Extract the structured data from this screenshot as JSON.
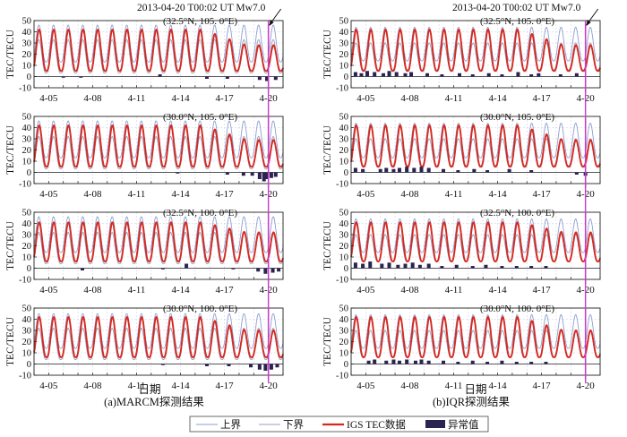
{
  "figure": {
    "colors": {
      "upper": "#8f9ecf",
      "lower": "#9aa0b8",
      "tec": "#d42a22",
      "anomaly": "#2b2350",
      "marker": "#c83cc8",
      "grid": "#c9cbe6"
    },
    "panels_title": {
      "event_label": "2013-04-20 T00:02 UT  Mw7.0"
    },
    "columns": [
      {
        "caption": "(a)MARCM探测结果",
        "xlabel": "日期"
      },
      {
        "caption": "(b)IQR探测结果",
        "xlabel": "日期"
      }
    ],
    "legend": {
      "items": [
        {
          "label": "上界",
          "icon": "thin-line-upper"
        },
        {
          "label": "下界",
          "icon": "thin-line-lower"
        },
        {
          "label": "IGS TEC数据",
          "icon": "thick-red-line"
        },
        {
          "label": "异常值",
          "icon": "dark-bar"
        }
      ]
    }
  },
  "chart_data": [
    {
      "type": "line",
      "method": "MARCM",
      "title": "(32.5°N, 105. 0°E)",
      "ylabel": "TEC/TECU",
      "xlabel": "",
      "ylim": [
        -10,
        50
      ],
      "yticks": [
        -10,
        0,
        10,
        20,
        30,
        40,
        50
      ],
      "xlim": [
        4,
        21
      ],
      "xtick_labels": [
        "4-05",
        "4-08",
        "4-11",
        "4-14",
        "4-17",
        "4-20"
      ],
      "xtick_values": [
        5,
        8,
        11,
        14,
        17,
        20
      ],
      "event_day": 20.0,
      "series": [
        {
          "name": "上界",
          "peak": 46,
          "trough": 13
        },
        {
          "name": "下界",
          "peak": 33,
          "trough": 3
        },
        {
          "name": "IGS TEC数据",
          "peak": 42,
          "trough": 5,
          "late_peak": 28
        }
      ],
      "anomalies": {
        "days": [
          6.0,
          7.2,
          12.6,
          15.8,
          17.2,
          19.4,
          19.9,
          20.5
        ],
        "values": [
          -1,
          -1,
          2,
          -2,
          -2,
          -3,
          -4,
          -3
        ]
      }
    },
    {
      "type": "line",
      "method": "IQR",
      "title": "(32.5°N, 105. 0°E)",
      "ylabel": "TEC/TECU",
      "xlabel": "",
      "ylim": [
        -10,
        50
      ],
      "yticks": [
        -10,
        0,
        10,
        20,
        30,
        40,
        50
      ],
      "xlim": [
        4,
        21
      ],
      "xtick_labels": [
        "4-05",
        "4-08",
        "4-11",
        "4-14",
        "4-17",
        "4-20"
      ],
      "xtick_values": [
        5,
        8,
        11,
        14,
        17,
        20
      ],
      "event_day": 20.0,
      "series": [
        {
          "name": "上界",
          "peak": 44,
          "trough": 14
        },
        {
          "name": "下界",
          "peak": 30,
          "trough": 6
        },
        {
          "name": "IGS TEC数据",
          "peak": 42,
          "trough": 5,
          "late_peak": 28
        }
      ],
      "anomalies": {
        "days": [
          4.3,
          4.7,
          5.1,
          5.6,
          6.2,
          6.6,
          7.1,
          7.7,
          8.1,
          9.2,
          10.2,
          11.4,
          12.3,
          13.4,
          14.3,
          15.4,
          16.3,
          16.8,
          18.3,
          19.4
        ],
        "values": [
          4,
          3,
          5,
          4,
          3,
          5,
          4,
          3,
          4,
          3,
          2,
          3,
          2,
          3,
          2,
          4,
          2,
          3,
          2,
          3
        ]
      }
    },
    {
      "type": "line",
      "method": "MARCM",
      "title": "(30.0°N, 105. 0°E)",
      "ylabel": "TEC/TECU",
      "xlabel": "",
      "ylim": [
        -10,
        50
      ],
      "yticks": [
        -10,
        0,
        10,
        20,
        30,
        40,
        50
      ],
      "xlim": [
        4,
        21
      ],
      "xtick_labels": [
        "4-05",
        "4-08",
        "4-11",
        "4-14",
        "4-17",
        "4-20"
      ],
      "xtick_values": [
        5,
        8,
        11,
        14,
        17,
        20
      ],
      "event_day": 20.0,
      "series": [
        {
          "name": "上界",
          "peak": 46,
          "trough": 13
        },
        {
          "name": "下界",
          "peak": 32,
          "trough": 3
        },
        {
          "name": "IGS TEC数据",
          "peak": 42,
          "trough": 5,
          "late_peak": 29
        }
      ],
      "anomalies": {
        "days": [
          13.8,
          17.2,
          18.3,
          18.9,
          19.4,
          19.7,
          19.9,
          20.2,
          20.5
        ],
        "values": [
          -1,
          -2,
          -3,
          -3,
          -6,
          -8,
          -6,
          -5,
          -4
        ]
      }
    },
    {
      "type": "line",
      "method": "IQR",
      "title": "(30.0°N, 105. 0°E)",
      "ylabel": "TEC/TECU",
      "xlabel": "",
      "ylim": [
        -10,
        50
      ],
      "yticks": [
        -10,
        0,
        10,
        20,
        30,
        40,
        50
      ],
      "xlim": [
        4,
        21
      ],
      "xtick_labels": [
        "4-05",
        "4-08",
        "4-11",
        "4-14",
        "4-17",
        "4-20"
      ],
      "xtick_values": [
        5,
        8,
        11,
        14,
        17,
        20
      ],
      "event_day": 20.0,
      "series": [
        {
          "name": "上界",
          "peak": 44,
          "trough": 13
        },
        {
          "name": "下界",
          "peak": 30,
          "trough": 6
        },
        {
          "name": "IGS TEC数据",
          "peak": 42,
          "trough": 5,
          "late_peak": 29
        }
      ],
      "anomalies": {
        "days": [
          4.3,
          4.8,
          6.0,
          6.4,
          6.9,
          7.3,
          7.8,
          8.3,
          8.8,
          9.3,
          10.3,
          11.3,
          12.4,
          13.3,
          14.8,
          16.3,
          19.4,
          20.0
        ],
        "values": [
          4,
          3,
          3,
          4,
          3,
          4,
          5,
          4,
          5,
          4,
          3,
          2,
          3,
          2,
          3,
          2,
          -2,
          -3
        ]
      }
    },
    {
      "type": "line",
      "method": "MARCM",
      "title": "(32.5°N, 100. 0°E)",
      "ylabel": "TEC/TECU",
      "xlabel": "",
      "ylim": [
        -10,
        50
      ],
      "yticks": [
        -10,
        0,
        10,
        20,
        30,
        40,
        50
      ],
      "xlim": [
        4,
        21
      ],
      "xtick_labels": [
        "4-05",
        "4-08",
        "4-11",
        "4-14",
        "4-17",
        "4-20"
      ],
      "xtick_values": [
        5,
        8,
        11,
        14,
        17,
        20
      ],
      "event_day": 20.0,
      "series": [
        {
          "name": "上界",
          "peak": 46,
          "trough": 14
        },
        {
          "name": "下界",
          "peak": 32,
          "trough": 4
        },
        {
          "name": "IGS TEC数据",
          "peak": 41,
          "trough": 6,
          "late_peak": 32
        }
      ],
      "anomalies": {
        "days": [
          7.3,
          12.8,
          14.4,
          17.6,
          19.3,
          19.8,
          20.3,
          20.7
        ],
        "values": [
          -2,
          -1,
          4,
          -1,
          -3,
          -5,
          -4,
          -3
        ]
      }
    },
    {
      "type": "line",
      "method": "IQR",
      "title": "(32.5°N, 100. 0°E)",
      "ylabel": "TEC/TECU",
      "xlabel": "",
      "ylim": [
        -10,
        50
      ],
      "yticks": [
        -10,
        0,
        10,
        20,
        30,
        40,
        50
      ],
      "xlim": [
        4,
        21
      ],
      "xtick_labels": [
        "4-05",
        "4-08",
        "4-11",
        "4-14",
        "4-17",
        "4-20"
      ],
      "xtick_values": [
        5,
        8,
        11,
        14,
        17,
        20
      ],
      "event_day": 20.0,
      "series": [
        {
          "name": "上界",
          "peak": 44,
          "trough": 14
        },
        {
          "name": "下界",
          "peak": 30,
          "trough": 6
        },
        {
          "name": "IGS TEC数据",
          "peak": 41,
          "trough": 6,
          "late_peak": 32
        }
      ],
      "anomalies": {
        "days": [
          4.3,
          4.8,
          5.3,
          6.1,
          6.6,
          7.2,
          7.7,
          8.2,
          8.7,
          9.3,
          10.2,
          11.2,
          12.3,
          13.2,
          14.3,
          15.3,
          16.3,
          17.3
        ],
        "values": [
          5,
          4,
          6,
          4,
          5,
          3,
          4,
          5,
          3,
          4,
          2,
          3,
          2,
          3,
          2,
          2,
          2,
          2
        ]
      }
    },
    {
      "type": "line",
      "method": "MARCM",
      "title": "(30.0°N, 100. 0°E)",
      "ylabel": "TEC/TECU",
      "xlabel": "日期",
      "ylim": [
        -10,
        50
      ],
      "yticks": [
        -10,
        0,
        10,
        20,
        30,
        40,
        50
      ],
      "xlim": [
        4,
        21
      ],
      "xtick_labels": [
        "4-05",
        "4-08",
        "4-11",
        "4-14",
        "4-17",
        "4-20"
      ],
      "xtick_values": [
        5,
        8,
        11,
        14,
        17,
        20
      ],
      "event_day": 20.0,
      "series": [
        {
          "name": "上界",
          "peak": 45,
          "trough": 14
        },
        {
          "name": "下界",
          "peak": 32,
          "trough": 4
        },
        {
          "name": "IGS TEC数据",
          "peak": 42,
          "trough": 6,
          "late_peak": 30
        }
      ],
      "anomalies": {
        "days": [
          12.8,
          15.8,
          17.3,
          18.8,
          19.4,
          19.8,
          20.2,
          20.6
        ],
        "values": [
          -1,
          -2,
          -2,
          -3,
          -5,
          -6,
          -5,
          -3
        ]
      }
    },
    {
      "type": "line",
      "method": "IQR",
      "title": "(30.0°N, 100. 0°E)",
      "ylabel": "TEC/TECU",
      "xlabel": "日期",
      "ylim": [
        -10,
        50
      ],
      "yticks": [
        -10,
        0,
        10,
        20,
        30,
        40,
        50
      ],
      "xlim": [
        4,
        21
      ],
      "xtick_labels": [
        "4-05",
        "4-08",
        "4-11",
        "4-14",
        "4-17",
        "4-20"
      ],
      "xtick_values": [
        5,
        8,
        11,
        14,
        17,
        20
      ],
      "event_day": 20.0,
      "series": [
        {
          "name": "上界",
          "peak": 44,
          "trough": 14
        },
        {
          "name": "下界",
          "peak": 30,
          "trough": 6
        },
        {
          "name": "IGS TEC数据",
          "peak": 42,
          "trough": 6,
          "late_peak": 30
        }
      ],
      "anomalies": {
        "days": [
          5.2,
          5.6,
          6.4,
          6.9,
          7.3,
          7.8,
          8.4,
          8.8,
          9.3,
          10.3,
          11.3,
          12.3,
          13.3,
          14.3,
          15.3,
          16.3,
          17.3
        ],
        "values": [
          3,
          4,
          3,
          4,
          3,
          4,
          3,
          4,
          3,
          3,
          2,
          3,
          2,
          3,
          2,
          2,
          2
        ]
      }
    }
  ]
}
